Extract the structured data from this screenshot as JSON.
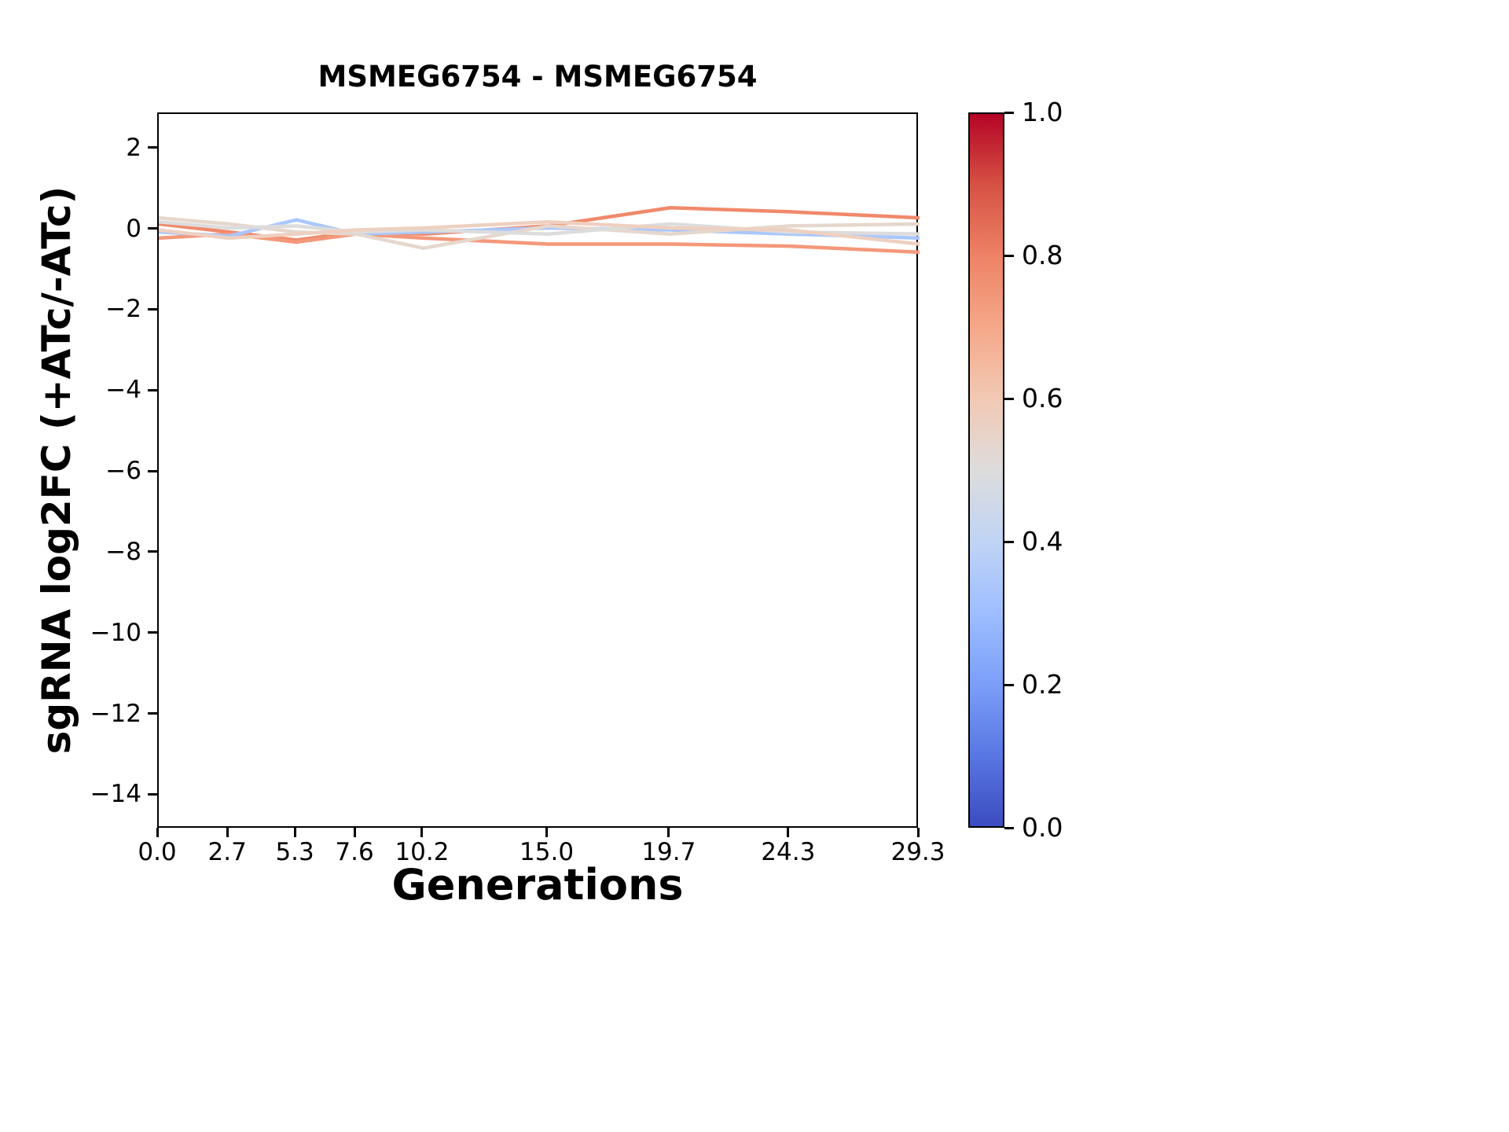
{
  "figure": {
    "background": "#ffffff",
    "axis_color": "#000000"
  },
  "chart_data": {
    "type": "line",
    "title": "MSMEG6754 - MSMEG6754",
    "xlabel": "Generations",
    "ylabel": "sgRNA log2FC (+ATc/-ATc)",
    "grid": false,
    "legend": "none",
    "x": [
      0.0,
      2.7,
      5.3,
      7.6,
      10.2,
      15.0,
      19.7,
      24.3,
      29.3
    ],
    "xtick_labels": [
      "0.0",
      "2.7",
      "5.3",
      "7.6",
      "10.2",
      "15.0",
      "19.7",
      "24.3",
      "29.3"
    ],
    "ytick_values": [
      2,
      0,
      -2,
      -4,
      -6,
      -8,
      -10,
      -12,
      -14
    ],
    "ytick_labels": [
      "2",
      "0",
      "−2",
      "−4",
      "−6",
      "−8",
      "−10",
      "−12",
      "−14"
    ],
    "xlim": [
      0.0,
      29.3
    ],
    "ylim": [
      -14.83,
      2.87
    ],
    "line_width": 4.5,
    "series": [
      {
        "colormap_value": 0.8,
        "color": "#f0896b",
        "values": [
          0.15,
          -0.05,
          -0.25,
          -0.05,
          -0.1,
          0.1,
          0.55,
          0.45,
          0.3
        ]
      },
      {
        "colormap_value": 0.76,
        "color": "#f4987a",
        "values": [
          -0.2,
          -0.1,
          -0.3,
          -0.1,
          -0.2,
          -0.35,
          -0.35,
          -0.4,
          -0.55
        ]
      },
      {
        "colormap_value": 0.4,
        "color": "#aac7fd",
        "values": [
          -0.05,
          -0.15,
          0.25,
          -0.1,
          -0.05,
          0.05,
          0.0,
          -0.1,
          -0.2
        ]
      },
      {
        "colormap_value": 0.58,
        "color": "#e6d7cd",
        "values": [
          0.3,
          0.15,
          -0.05,
          -0.1,
          -0.45,
          0.1,
          -0.1,
          0.1,
          0.15
        ]
      },
      {
        "colormap_value": 0.5,
        "color": "#dddcdc",
        "values": [
          0.2,
          0.05,
          0.1,
          -0.05,
          0.0,
          -0.1,
          0.15,
          -0.05,
          -0.1
        ]
      },
      {
        "colormap_value": 0.62,
        "color": "#eed0c0",
        "values": [
          0.0,
          -0.2,
          -0.1,
          0.0,
          0.05,
          0.2,
          0.05,
          0.0,
          -0.35
        ]
      }
    ],
    "colorbar": {
      "colormap": "coolwarm",
      "range": [
        0.0,
        1.0
      ],
      "tick_values": [
        1.0,
        0.8,
        0.6,
        0.4,
        0.2,
        0.0
      ],
      "tick_labels": [
        "1.0",
        "0.8",
        "0.6",
        "0.4",
        "0.2",
        "0.0"
      ],
      "gradient_stops_bottom_to_top": [
        "#3b4cc0",
        "#5977e3",
        "#7b9ff9",
        "#9ebeff",
        "#c0d4f5",
        "#dddcdc",
        "#f2c9b4",
        "#f5a889",
        "#ee8266",
        "#d65244",
        "#b40426"
      ]
    }
  }
}
